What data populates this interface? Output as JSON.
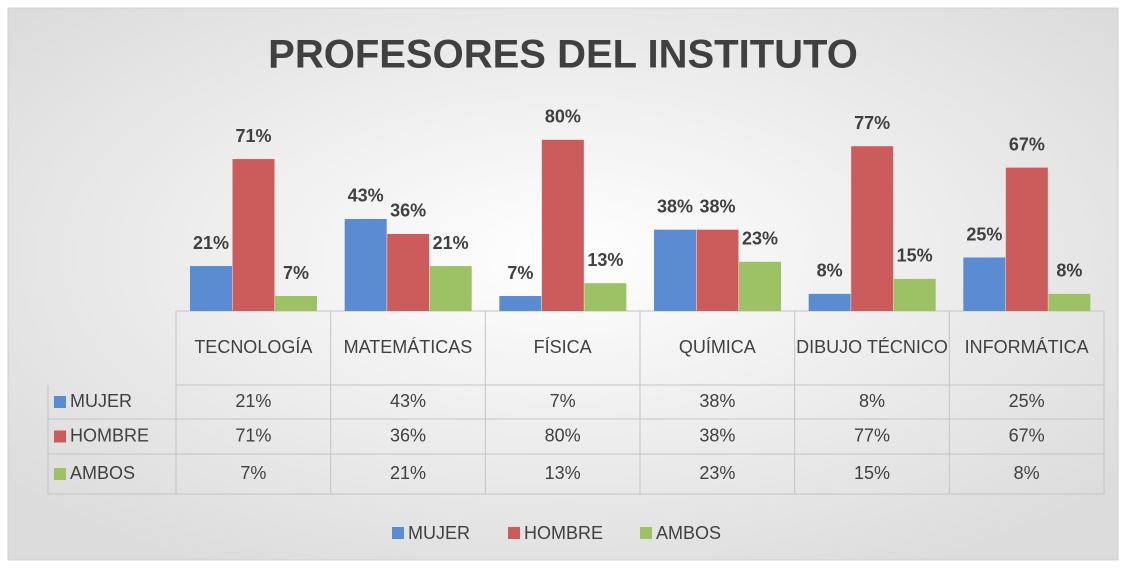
{
  "chart_data": {
    "type": "bar",
    "title": "PROFESORES DEL INSTITUTO",
    "categories": [
      "TECNOLOGÍA",
      "MATEMÁTICAS",
      "FÍSICA",
      "QUÍMICA",
      "DIBUJO TÉCNICO",
      "INFORMÁTICA"
    ],
    "series": [
      {
        "name": "MUJER",
        "color": "#5b8bd0",
        "values": [
          21,
          43,
          7,
          38,
          8,
          25
        ],
        "value_labels": [
          "21%",
          "43%",
          "7%",
          "38%",
          "8%",
          "25%"
        ]
      },
      {
        "name": "HOMBRE",
        "color": "#cc5c5c",
        "values": [
          71,
          36,
          80,
          38,
          77,
          67
        ],
        "value_labels": [
          "71%",
          "36%",
          "80%",
          "38%",
          "77%",
          "67%"
        ]
      },
      {
        "name": "AMBOS",
        "color": "#9dc165",
        "values": [
          7,
          21,
          13,
          23,
          15,
          8
        ],
        "value_labels": [
          "7%",
          "21%",
          "13%",
          "23%",
          "15%",
          "8%"
        ]
      }
    ],
    "legend": "bottom",
    "data_table": true
  }
}
